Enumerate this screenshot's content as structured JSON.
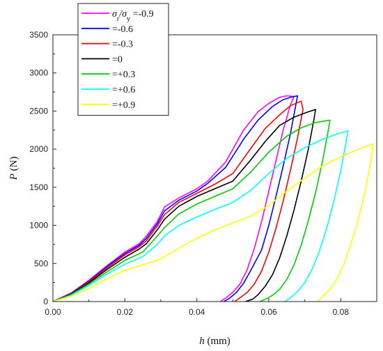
{
  "chart_data": {
    "type": "line",
    "title": "",
    "xlabel": {
      "var": "h",
      "unit": " (mm)"
    },
    "ylabel": {
      "var": "P",
      "unit": " (N)"
    },
    "xlim": [
      0.0,
      0.09
    ],
    "ylim": [
      0,
      3500
    ],
    "xticks": [
      0.0,
      0.02,
      0.04,
      0.06,
      0.08
    ],
    "xtick_labels": [
      "0.00",
      "0.02",
      "0.04",
      "0.06",
      "0.08"
    ],
    "yticks": [
      0,
      500,
      1000,
      1500,
      2000,
      2500,
      3000,
      3500
    ],
    "ytick_labels": [
      "0",
      "500",
      "1000",
      "1500",
      "2000",
      "2500",
      "3000",
      "3500"
    ],
    "grid": false,
    "legend_position": "top-left",
    "legend_title_parts": {
      "s1": "σ",
      "sub1": "r",
      "slash": "/σ",
      "sub2": "y"
    },
    "series": [
      {
        "name": "=-0.9",
        "color": "#ff00ff",
        "points": [
          [
            0,
            0
          ],
          [
            0.005,
            110
          ],
          [
            0.01,
            280
          ],
          [
            0.015,
            470
          ],
          [
            0.02,
            650
          ],
          [
            0.024,
            760
          ],
          [
            0.026,
            860
          ],
          [
            0.029,
            1050
          ],
          [
            0.031,
            1240
          ],
          [
            0.035,
            1360
          ],
          [
            0.04,
            1480
          ],
          [
            0.043,
            1580
          ],
          [
            0.048,
            1830
          ],
          [
            0.053,
            2250
          ],
          [
            0.057,
            2490
          ],
          [
            0.06,
            2600
          ],
          [
            0.063,
            2680
          ],
          [
            0.065,
            2700
          ],
          [
            0.067,
            2690
          ],
          [
            0.066,
            2580
          ],
          [
            0.064,
            2250
          ],
          [
            0.062,
            1850
          ],
          [
            0.06,
            1450
          ],
          [
            0.058,
            1050
          ],
          [
            0.056,
            700
          ],
          [
            0.054,
            420
          ],
          [
            0.052,
            230
          ],
          [
            0.05,
            120
          ],
          [
            0.048,
            45
          ],
          [
            0.0465,
            0
          ]
        ]
      },
      {
        "name": "=-0.6",
        "color": "#0000ff",
        "points": [
          [
            0,
            0
          ],
          [
            0.005,
            105
          ],
          [
            0.01,
            270
          ],
          [
            0.015,
            460
          ],
          [
            0.02,
            630
          ],
          [
            0.024,
            740
          ],
          [
            0.026,
            830
          ],
          [
            0.029,
            1020
          ],
          [
            0.031,
            1190
          ],
          [
            0.035,
            1330
          ],
          [
            0.04,
            1450
          ],
          [
            0.043,
            1550
          ],
          [
            0.048,
            1760
          ],
          [
            0.053,
            2130
          ],
          [
            0.057,
            2380
          ],
          [
            0.061,
            2560
          ],
          [
            0.064,
            2650
          ],
          [
            0.066,
            2680
          ],
          [
            0.068,
            2700
          ],
          [
            0.0675,
            2580
          ],
          [
            0.066,
            2200
          ],
          [
            0.064,
            1780
          ],
          [
            0.062,
            1380
          ],
          [
            0.06,
            1000
          ],
          [
            0.058,
            680
          ],
          [
            0.055,
            410
          ],
          [
            0.053,
            240
          ],
          [
            0.051,
            120
          ],
          [
            0.049,
            40
          ],
          [
            0.0475,
            0
          ]
        ]
      },
      {
        "name": "=-0.3",
        "color": "#ff0000",
        "points": [
          [
            0,
            0
          ],
          [
            0.005,
            100
          ],
          [
            0.01,
            260
          ],
          [
            0.015,
            440
          ],
          [
            0.02,
            610
          ],
          [
            0.024,
            720
          ],
          [
            0.026,
            800
          ],
          [
            0.029,
            990
          ],
          [
            0.031,
            1140
          ],
          [
            0.035,
            1300
          ],
          [
            0.04,
            1420
          ],
          [
            0.045,
            1540
          ],
          [
            0.05,
            1680
          ],
          [
            0.055,
            2010
          ],
          [
            0.059,
            2270
          ],
          [
            0.063,
            2450
          ],
          [
            0.066,
            2570
          ],
          [
            0.069,
            2630
          ],
          [
            0.0695,
            2520
          ],
          [
            0.068,
            2150
          ],
          [
            0.066,
            1720
          ],
          [
            0.064,
            1320
          ],
          [
            0.062,
            960
          ],
          [
            0.06,
            650
          ],
          [
            0.058,
            400
          ],
          [
            0.056,
            230
          ],
          [
            0.054,
            120
          ],
          [
            0.052,
            50
          ],
          [
            0.0505,
            0
          ]
        ]
      },
      {
        "name": "=0",
        "color": "#000000",
        "points": [
          [
            0,
            0
          ],
          [
            0.005,
            95
          ],
          [
            0.01,
            245
          ],
          [
            0.015,
            420
          ],
          [
            0.02,
            580
          ],
          [
            0.024,
            690
          ],
          [
            0.026,
            760
          ],
          [
            0.029,
            940
          ],
          [
            0.031,
            1080
          ],
          [
            0.035,
            1250
          ],
          [
            0.04,
            1380
          ],
          [
            0.045,
            1480
          ],
          [
            0.05,
            1580
          ],
          [
            0.055,
            1860
          ],
          [
            0.059,
            2100
          ],
          [
            0.063,
            2310
          ],
          [
            0.067,
            2420
          ],
          [
            0.071,
            2490
          ],
          [
            0.073,
            2520
          ],
          [
            0.0725,
            2380
          ],
          [
            0.071,
            2000
          ],
          [
            0.069,
            1580
          ],
          [
            0.067,
            1200
          ],
          [
            0.065,
            860
          ],
          [
            0.063,
            570
          ],
          [
            0.061,
            350
          ],
          [
            0.059,
            200
          ],
          [
            0.057,
            90
          ],
          [
            0.0555,
            30
          ],
          [
            0.0535,
            0
          ]
        ]
      },
      {
        "name": "=+0.3",
        "color": "#00cc00",
        "points": [
          [
            0,
            0
          ],
          [
            0.005,
            90
          ],
          [
            0.01,
            230
          ],
          [
            0.015,
            390
          ],
          [
            0.02,
            540
          ],
          [
            0.025,
            650
          ],
          [
            0.029,
            860
          ],
          [
            0.031,
            970
          ],
          [
            0.035,
            1150
          ],
          [
            0.04,
            1280
          ],
          [
            0.045,
            1380
          ],
          [
            0.05,
            1480
          ],
          [
            0.055,
            1700
          ],
          [
            0.06,
            1960
          ],
          [
            0.065,
            2170
          ],
          [
            0.069,
            2280
          ],
          [
            0.073,
            2350
          ],
          [
            0.077,
            2380
          ],
          [
            0.0765,
            2240
          ],
          [
            0.075,
            1860
          ],
          [
            0.073,
            1430
          ],
          [
            0.071,
            1060
          ],
          [
            0.069,
            740
          ],
          [
            0.067,
            480
          ],
          [
            0.065,
            290
          ],
          [
            0.063,
            160
          ],
          [
            0.061,
            80
          ],
          [
            0.059,
            30
          ],
          [
            0.0575,
            0
          ]
        ]
      },
      {
        "name": "=+0.6",
        "color": "#00ffff",
        "points": [
          [
            0,
            0
          ],
          [
            0.005,
            80
          ],
          [
            0.01,
            210
          ],
          [
            0.015,
            360
          ],
          [
            0.02,
            490
          ],
          [
            0.025,
            590
          ],
          [
            0.029,
            750
          ],
          [
            0.031,
            860
          ],
          [
            0.035,
            1000
          ],
          [
            0.04,
            1110
          ],
          [
            0.045,
            1210
          ],
          [
            0.05,
            1300
          ],
          [
            0.055,
            1460
          ],
          [
            0.06,
            1680
          ],
          [
            0.065,
            1880
          ],
          [
            0.07,
            2020
          ],
          [
            0.075,
            2130
          ],
          [
            0.079,
            2200
          ],
          [
            0.082,
            2240
          ],
          [
            0.0815,
            2100
          ],
          [
            0.08,
            1720
          ],
          [
            0.078,
            1300
          ],
          [
            0.076,
            950
          ],
          [
            0.074,
            650
          ],
          [
            0.072,
            420
          ],
          [
            0.07,
            250
          ],
          [
            0.068,
            130
          ],
          [
            0.066,
            50
          ],
          [
            0.0645,
            0
          ]
        ]
      },
      {
        "name": "=+0.9",
        "color": "#ffff00",
        "points": [
          [
            0,
            0
          ],
          [
            0.005,
            70
          ],
          [
            0.01,
            170
          ],
          [
            0.015,
            300
          ],
          [
            0.02,
            410
          ],
          [
            0.025,
            480
          ],
          [
            0.03,
            560
          ],
          [
            0.035,
            700
          ],
          [
            0.04,
            830
          ],
          [
            0.045,
            940
          ],
          [
            0.05,
            1030
          ],
          [
            0.055,
            1120
          ],
          [
            0.06,
            1260
          ],
          [
            0.065,
            1450
          ],
          [
            0.07,
            1620
          ],
          [
            0.075,
            1780
          ],
          [
            0.08,
            1900
          ],
          [
            0.085,
            2000
          ],
          [
            0.089,
            2070
          ],
          [
            0.0885,
            1880
          ],
          [
            0.087,
            1500
          ],
          [
            0.085,
            1100
          ],
          [
            0.083,
            780
          ],
          [
            0.081,
            500
          ],
          [
            0.079,
            300
          ],
          [
            0.077,
            160
          ],
          [
            0.075,
            70
          ],
          [
            0.0735,
            0
          ]
        ]
      }
    ]
  }
}
